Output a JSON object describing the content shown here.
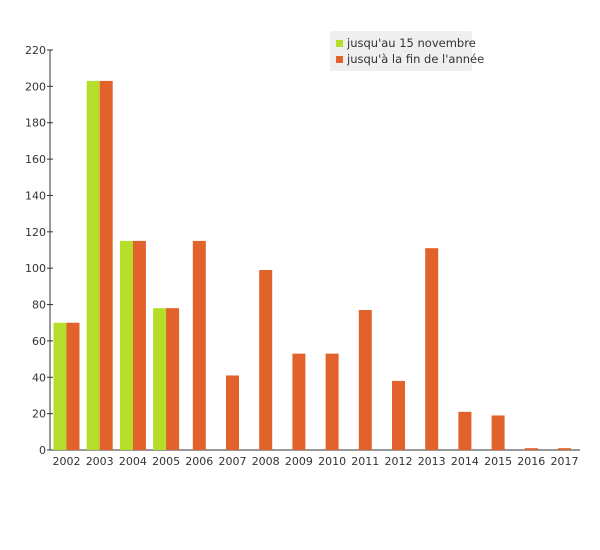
{
  "chart_data": {
    "type": "bar",
    "categories": [
      "2002",
      "2003",
      "2004",
      "2005",
      "2006",
      "2007",
      "2008",
      "2009",
      "2010",
      "2011",
      "2012",
      "2013",
      "2014",
      "2015",
      "2016",
      "2017"
    ],
    "series": [
      {
        "name": "jusqu'au 15 novembre",
        "color": "#b5de2b",
        "values": [
          70,
          203,
          115,
          78,
          null,
          null,
          null,
          null,
          null,
          null,
          null,
          null,
          null,
          null,
          null,
          null
        ]
      },
      {
        "name": "jusqu'à la fin de l'année",
        "color": "#e2622c",
        "values": [
          70,
          203,
          115,
          78,
          115,
          41,
          99,
          53,
          53,
          77,
          38,
          111,
          21,
          19,
          1,
          1
        ]
      }
    ],
    "ylim": [
      0,
      220
    ],
    "yticks": [
      0,
      20,
      40,
      60,
      80,
      100,
      120,
      140,
      160,
      180,
      200,
      220
    ],
    "title": "",
    "xlabel": "",
    "ylabel": "",
    "grid": false,
    "legend_position": "top-right"
  }
}
